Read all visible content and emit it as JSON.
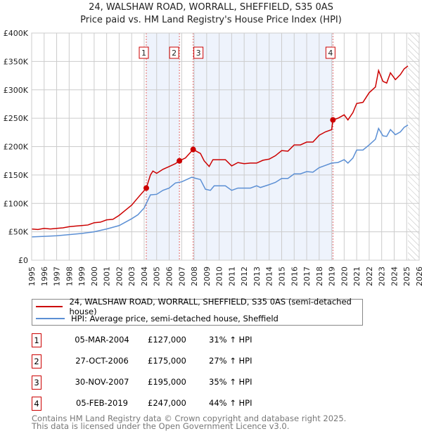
{
  "title": "24, WALSHAW ROAD, WORRALL, SHEFFIELD, S35 0AS",
  "subtitle": "Price paid vs. HM Land Registry's House Price Index (HPI)",
  "colors": {
    "property": "#cc0000",
    "hpi": "#5b8fd4",
    "shade": "#eef3fc"
  },
  "chart_data": {
    "type": "line",
    "ylim": [
      0,
      400000
    ],
    "xlim": [
      1995,
      2026
    ],
    "y_ticks": [
      {
        "v": 0,
        "label": "£0"
      },
      {
        "v": 50000,
        "label": "£50K"
      },
      {
        "v": 100000,
        "label": "£100K"
      },
      {
        "v": 150000,
        "label": "£150K"
      },
      {
        "v": 200000,
        "label": "£200K"
      },
      {
        "v": 250000,
        "label": "£250K"
      },
      {
        "v": 300000,
        "label": "£300K"
      },
      {
        "v": 350000,
        "label": "£350K"
      },
      {
        "v": 400000,
        "label": "£400K"
      }
    ],
    "x_ticks": [
      "1995",
      "1996",
      "1997",
      "1998",
      "1999",
      "2000",
      "2001",
      "2002",
      "2003",
      "2004",
      "2005",
      "2006",
      "2007",
      "2008",
      "2009",
      "2010",
      "2011",
      "2012",
      "2013",
      "2014",
      "2015",
      "2016",
      "2017",
      "2018",
      "2019",
      "2020",
      "2021",
      "2022",
      "2023",
      "2024",
      "2025",
      "2026"
    ],
    "forecast_from": 2025.1,
    "series": [
      {
        "name": "24, WALSHAW ROAD, WORRALL, SHEFFIELD, S35 0AS (semi-detached house)",
        "points": [
          [
            1995,
            55
          ],
          [
            1995.5,
            54
          ],
          [
            1996,
            56
          ],
          [
            1996.5,
            55
          ],
          [
            1997,
            56
          ],
          [
            1997.5,
            57
          ],
          [
            1998,
            59
          ],
          [
            1998.5,
            60
          ],
          [
            1999,
            61
          ],
          [
            1999.5,
            62
          ],
          [
            2000,
            66
          ],
          [
            2000.5,
            67
          ],
          [
            2001,
            71
          ],
          [
            2001.5,
            72
          ],
          [
            2002,
            79
          ],
          [
            2002.5,
            88
          ],
          [
            2003,
            97
          ],
          [
            2003.5,
            110
          ],
          [
            2004.17,
            127
          ],
          [
            2004.5,
            150
          ],
          [
            2004.7,
            157
          ],
          [
            2005,
            153
          ],
          [
            2005.5,
            160
          ],
          [
            2006,
            165
          ],
          [
            2006.5,
            170
          ],
          [
            2006.82,
            175
          ],
          [
            2007.3,
            180
          ],
          [
            2007.92,
            195
          ],
          [
            2008.5,
            188
          ],
          [
            2008.8,
            175
          ],
          [
            2009.2,
            165
          ],
          [
            2009.5,
            177
          ],
          [
            2010,
            177
          ],
          [
            2010.5,
            177
          ],
          [
            2011,
            166
          ],
          [
            2011.5,
            172
          ],
          [
            2012,
            170
          ],
          [
            2012.5,
            171
          ],
          [
            2013,
            171
          ],
          [
            2013.5,
            176
          ],
          [
            2014,
            178
          ],
          [
            2014.5,
            184
          ],
          [
            2015,
            193
          ],
          [
            2015.5,
            192
          ],
          [
            2016,
            203
          ],
          [
            2016.5,
            203
          ],
          [
            2017,
            208
          ],
          [
            2017.5,
            208
          ],
          [
            2018,
            220
          ],
          [
            2018.5,
            226
          ],
          [
            2019.0,
            230
          ],
          [
            2019.1,
            247
          ],
          [
            2019.5,
            250
          ],
          [
            2020,
            256
          ],
          [
            2020.3,
            247
          ],
          [
            2020.7,
            260
          ],
          [
            2021,
            276
          ],
          [
            2021.5,
            278
          ],
          [
            2022,
            295
          ],
          [
            2022.5,
            305
          ],
          [
            2022.75,
            334
          ],
          [
            2023.1,
            315
          ],
          [
            2023.4,
            312
          ],
          [
            2023.7,
            330
          ],
          [
            2024.1,
            318
          ],
          [
            2024.5,
            327
          ],
          [
            2024.8,
            337
          ],
          [
            2025.1,
            342
          ]
        ]
      },
      {
        "name": "HPI: Average price, semi-detached house, Sheffield",
        "points": [
          [
            1995,
            41
          ],
          [
            1996,
            42
          ],
          [
            1997,
            43
          ],
          [
            1998,
            45
          ],
          [
            1999,
            47
          ],
          [
            2000,
            50
          ],
          [
            2001,
            55
          ],
          [
            2002,
            61
          ],
          [
            2003,
            73
          ],
          [
            2003.5,
            80
          ],
          [
            2004,
            92
          ],
          [
            2004.5,
            115
          ],
          [
            2005,
            116
          ],
          [
            2005.5,
            123
          ],
          [
            2006,
            127
          ],
          [
            2006.5,
            136
          ],
          [
            2007,
            138
          ],
          [
            2007.8,
            146
          ],
          [
            2008.5,
            142
          ],
          [
            2008.9,
            125
          ],
          [
            2009.3,
            123
          ],
          [
            2009.6,
            131
          ],
          [
            2010.5,
            131
          ],
          [
            2011,
            123
          ],
          [
            2011.5,
            127
          ],
          [
            2012.5,
            127
          ],
          [
            2013,
            131
          ],
          [
            2013.3,
            128
          ],
          [
            2014,
            133
          ],
          [
            2014.5,
            137
          ],
          [
            2015,
            144
          ],
          [
            2015.5,
            144
          ],
          [
            2016,
            152
          ],
          [
            2016.5,
            152
          ],
          [
            2017,
            156
          ],
          [
            2017.5,
            155
          ],
          [
            2018,
            163
          ],
          [
            2018.5,
            167
          ],
          [
            2019,
            171
          ],
          [
            2019.5,
            172
          ],
          [
            2020,
            177
          ],
          [
            2020.3,
            171
          ],
          [
            2020.7,
            180
          ],
          [
            2021,
            194
          ],
          [
            2021.5,
            194
          ],
          [
            2022,
            203
          ],
          [
            2022.5,
            213
          ],
          [
            2022.75,
            232
          ],
          [
            2023.1,
            219
          ],
          [
            2023.4,
            218
          ],
          [
            2023.7,
            230
          ],
          [
            2024.1,
            221
          ],
          [
            2024.5,
            226
          ],
          [
            2024.8,
            234
          ],
          [
            2025.1,
            238
          ]
        ]
      }
    ],
    "y_units": "thousands GBP for series points",
    "sales": [
      {
        "n": "1",
        "x": 2004.17,
        "value": 127000,
        "date": "05-MAR-2004",
        "price": "£127,000",
        "hpi": "31% ↑ HPI"
      },
      {
        "n": "2",
        "x": 2006.82,
        "value": 175000,
        "date": "27-OCT-2006",
        "price": "£175,000",
        "hpi": "27% ↑ HPI"
      },
      {
        "n": "3",
        "x": 2007.92,
        "value": 195000,
        "date": "30-NOV-2007",
        "price": "£195,000",
        "hpi": "35% ↑ HPI"
      },
      {
        "n": "4",
        "x": 2019.1,
        "value": 247000,
        "date": "05-FEB-2019",
        "price": "£247,000",
        "hpi": "44% ↑ HPI"
      }
    ]
  },
  "legend": {
    "property": "24, WALSHAW ROAD, WORRALL, SHEFFIELD, S35 0AS (semi-detached house)",
    "hpi": "HPI: Average price, semi-detached house, Sheffield"
  },
  "footer": {
    "line1": "Contains HM Land Registry data © Crown copyright and database right 2025.",
    "line2": "This data is licensed under the Open Government Licence v3.0."
  }
}
